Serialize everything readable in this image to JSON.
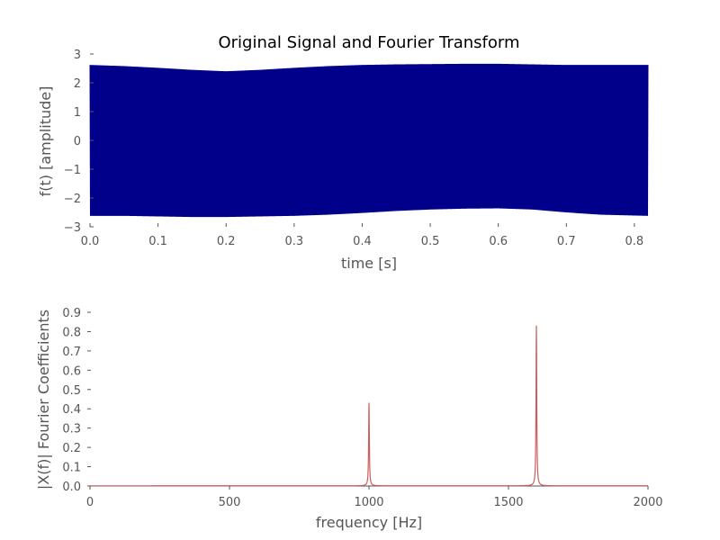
{
  "chart_data": [
    {
      "type": "line",
      "title": "Original Signal and Fourier Transform",
      "xlabel": "time [s]",
      "ylabel": "f(t) [amplitude]",
      "xlim": [
        0.0,
        0.82
      ],
      "ylim": [
        -3,
        3
      ],
      "xticks": [
        "0.0",
        "0.1",
        "0.2",
        "0.3",
        "0.4",
        "0.5",
        "0.6",
        "0.7",
        "0.8"
      ],
      "yticks": [
        "−3",
        "−2",
        "−1",
        "0",
        "1",
        "2",
        "3"
      ],
      "grid": false,
      "color": "#00008b",
      "signal": {
        "components": [
          {
            "frequency_hz": 1000,
            "amplitude": 0.43
          },
          {
            "frequency_hz": 1600,
            "amplitude": 0.83
          }
        ],
        "peak_envelope": {
          "x": [
            0.0,
            0.05,
            0.1,
            0.15,
            0.2,
            0.25,
            0.3,
            0.35,
            0.4,
            0.45,
            0.5,
            0.55,
            0.6,
            0.65,
            0.7,
            0.75,
            0.82
          ],
          "upper": [
            2.62,
            2.58,
            2.52,
            2.45,
            2.4,
            2.45,
            2.52,
            2.58,
            2.62,
            2.64,
            2.65,
            2.66,
            2.66,
            2.64,
            2.62,
            2.62,
            2.62
          ],
          "lower": [
            -2.62,
            -2.62,
            -2.64,
            -2.66,
            -2.66,
            -2.64,
            -2.62,
            -2.58,
            -2.52,
            -2.45,
            -2.4,
            -2.37,
            -2.36,
            -2.4,
            -2.5,
            -2.58,
            -2.62
          ]
        }
      }
    },
    {
      "type": "line",
      "xlabel": "frequency [Hz]",
      "ylabel": "|X(f)| Fourier Coefficients",
      "xlim": [
        0,
        2000
      ],
      "ylim": [
        0,
        0.9
      ],
      "xticks": [
        "0",
        "500",
        "1000",
        "1500",
        "2000"
      ],
      "yticks": [
        "0.0",
        "0.1",
        "0.2",
        "0.3",
        "0.4",
        "0.5",
        "0.6",
        "0.7",
        "0.8",
        "0.9"
      ],
      "grid": false,
      "color": "#cd5c5c",
      "peaks": [
        {
          "x": 1000,
          "y": 0.43
        },
        {
          "x": 1600,
          "y": 0.83
        }
      ]
    }
  ]
}
